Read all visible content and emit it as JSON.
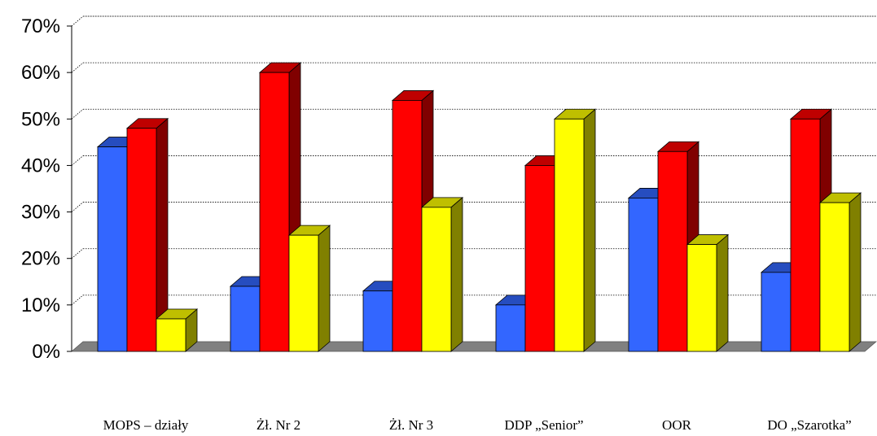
{
  "chart_data": {
    "type": "bar",
    "style": "3d-clustered-column",
    "categories": [
      "MOPS – działy",
      "Żł. Nr 2",
      "Żł. Nr 3",
      "DDP „Senior”",
      "OOR",
      "DO „Szarotka”"
    ],
    "series": [
      {
        "color": "#3366ff",
        "values": [
          44,
          14,
          13,
          10,
          33,
          17
        ]
      },
      {
        "color": "#ff0000",
        "values": [
          48,
          60,
          54,
          40,
          43,
          50
        ]
      },
      {
        "color": "#ffff00",
        "values": [
          7,
          25,
          31,
          50,
          23,
          32
        ]
      }
    ],
    "yticks": [
      "0%",
      "10%",
      "20%",
      "30%",
      "40%",
      "50%",
      "60%",
      "70%"
    ],
    "ylim": [
      0,
      70
    ],
    "grid": "dotted horizontal",
    "legend": "none",
    "floor_color": "#808080"
  }
}
